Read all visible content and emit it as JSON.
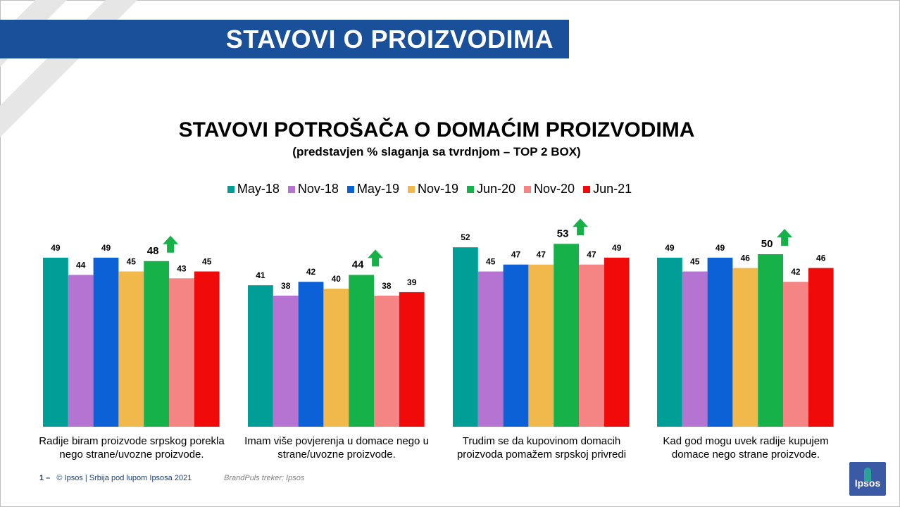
{
  "header": {
    "banner_title": "STAVOVI O PROIZVODIMA"
  },
  "colors": {
    "banner": "#1a4f9a",
    "series": [
      "#009e96",
      "#b574d2",
      "#0d61d6",
      "#f1b94b",
      "#17b14a",
      "#f58484",
      "#f10a0a"
    ],
    "up_arrow": "#17b14a"
  },
  "chart_data": {
    "type": "bar",
    "title": "STAVOVI POTROŠAČA O DOMAĆIM PROIZVODIMA",
    "subtitle": "(predstavjen % slaganja sa tvrdnjom – TOP 2 BOX)",
    "legend_position": "top",
    "grid": false,
    "ylim": [
      0,
      80
    ],
    "categories": [
      "Radije biram proizvode srpskog porekla nego strane/uvozne proizvode.",
      "Imam više povjerenja u domace nego u strane/uvozne proizvode.",
      "Trudim se da kupovinom domacih proizvoda pomažem srpskoj privredi",
      "Kad god mogu uvek radije kupujem domace nego strane proizvode."
    ],
    "category_lines": [
      [
        "Radije biram proizvode srpskog porekla",
        "nego strane/uvozne proizvode."
      ],
      [
        "Imam više povjerenja u domace nego u",
        "strane/uvozne proizvode."
      ],
      [
        "Trudim se da kupovinom domacih",
        "proizvoda pomažem srpskoj privredi"
      ],
      [
        "Kad god mogu uvek radije kupujem",
        "domace nego strane proizvode."
      ]
    ],
    "series": [
      {
        "name": "May-18",
        "values": [
          49,
          41,
          52,
          49
        ]
      },
      {
        "name": "Nov-18",
        "values": [
          44,
          38,
          45,
          45
        ]
      },
      {
        "name": "May-19",
        "values": [
          49,
          42,
          47,
          49
        ]
      },
      {
        "name": "Nov-19",
        "values": [
          45,
          40,
          47,
          46
        ]
      },
      {
        "name": "Jun-20",
        "values": [
          48,
          44,
          53,
          50
        ]
      },
      {
        "name": "Nov-20",
        "values": [
          43,
          38,
          47,
          42
        ]
      },
      {
        "name": "Jun-21",
        "values": [
          45,
          39,
          49,
          46
        ]
      }
    ],
    "highlight": {
      "series": "Jun-20",
      "marker": "up-arrow"
    }
  },
  "footer": {
    "page_number": "1 –",
    "copyright": "© Ipsos | Srbija pod lupom Ipsosa 2021",
    "source": "BrandPuls treker; Ipsos",
    "logo_text": "Ipsos"
  }
}
